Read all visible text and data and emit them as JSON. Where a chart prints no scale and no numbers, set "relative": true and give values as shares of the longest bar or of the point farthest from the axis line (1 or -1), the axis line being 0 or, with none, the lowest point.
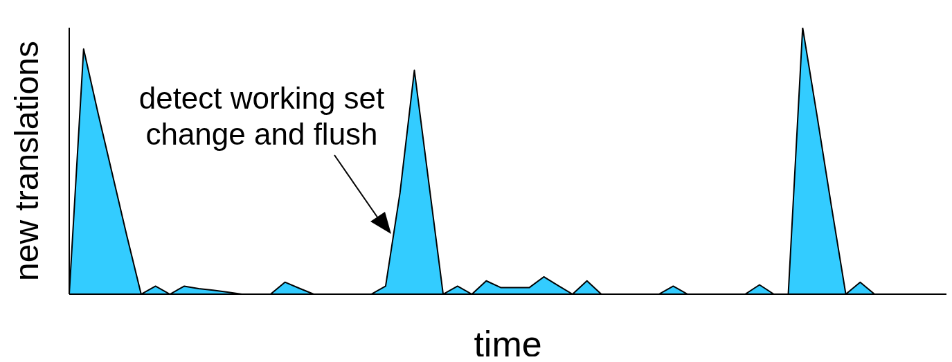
{
  "chart_data": {
    "type": "area",
    "relative": true,
    "xlabel": "time",
    "ylabel": "new translations",
    "annotations": [
      "detect working set change and flush"
    ],
    "categories": [
      null,
      null,
      null,
      null,
      null,
      null,
      null,
      null,
      null,
      null,
      null,
      null,
      null,
      null,
      null,
      null,
      null,
      null,
      null,
      null,
      null,
      null,
      null,
      null,
      null,
      null,
      null,
      null,
      null,
      null,
      null,
      null,
      null,
      null,
      null,
      null,
      null,
      null,
      null,
      null,
      null,
      null,
      null,
      null,
      null,
      null,
      null,
      null,
      null,
      null,
      null,
      null,
      null,
      null,
      null,
      null,
      null,
      null,
      null,
      null,
      null,
      null
    ],
    "values": [
      0,
      0.92,
      0.68,
      0.45,
      0.22,
      0,
      0.03,
      0,
      0.03,
      0.021,
      0.015,
      0.008,
      0,
      0,
      0,
      0.045,
      0.022,
      0,
      0,
      0,
      0,
      0,
      0.03,
      0.38,
      0.84,
      0.42,
      0,
      0.03,
      0,
      0.05,
      0.025,
      0.025,
      0.025,
      0.065,
      0.032,
      0,
      0.05,
      0,
      0,
      0,
      0,
      0,
      0.03,
      0,
      0,
      0,
      0,
      0,
      0.035,
      0,
      0,
      1,
      0.67,
      0.33,
      0,
      0.045,
      0,
      0,
      0,
      0,
      0,
      0
    ],
    "color": "#33ccff",
    "grid": false,
    "legend": false
  }
}
